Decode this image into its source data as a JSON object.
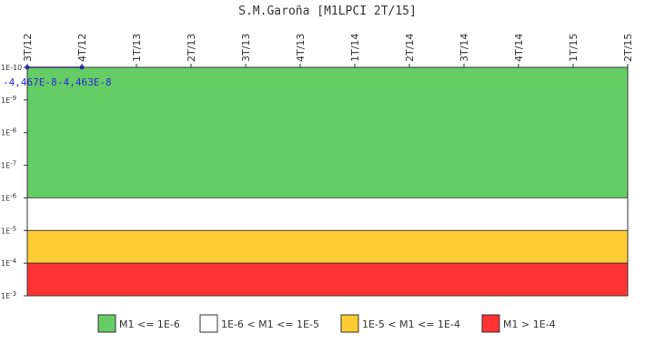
{
  "chart_data": {
    "type": "line",
    "title": "S.M.Garoña [M1LPCI 2T/15]",
    "x_categories": [
      "3T/12",
      "4T/12",
      "1T/13",
      "2T/13",
      "3T/13",
      "4T/13",
      "1T/14",
      "2T/14",
      "3T/14",
      "4T/14",
      "1T/15",
      "2T/15"
    ],
    "y_scale": "log",
    "y_axis_inverted": true,
    "y_ticks": [
      {
        "label_base": "1E-10",
        "exp": -10
      },
      {
        "label_base": "1E",
        "exp": -9,
        "sup": "-9"
      },
      {
        "label_base": "1E",
        "exp": -8,
        "sup": "-8"
      },
      {
        "label_base": "1E",
        "exp": -7,
        "sup": "-7"
      },
      {
        "label_base": "1E",
        "exp": -6,
        "sup": "-6"
      },
      {
        "label_base": "1E",
        "exp": -5,
        "sup": "-5"
      },
      {
        "label_base": "1E",
        "exp": -4,
        "sup": "-4"
      },
      {
        "label_base": "1E",
        "exp": -3,
        "sup": "-3"
      }
    ],
    "ylim_exp": [
      -10,
      -3
    ],
    "bands": [
      {
        "from_exp": -10,
        "to_exp": -6,
        "color": "#66cc66",
        "legend": "M1 <= 1E-6"
      },
      {
        "from_exp": -6,
        "to_exp": -5,
        "color": "#ffffff",
        "legend": "1E-6 < M1 <= 1E-5"
      },
      {
        "from_exp": -5,
        "to_exp": -4,
        "color": "#ffcc33",
        "legend": "1E-5 < M1 <= 1E-4"
      },
      {
        "from_exp": -4,
        "to_exp": -3,
        "color": "#ff3333",
        "legend": "M1 > 1E-4"
      }
    ],
    "series": [
      {
        "color": "#2a2ad0",
        "points": [
          {
            "x": "3T/12",
            "y": -4.467e-08,
            "label": "-4,467E-8"
          },
          {
            "x": "4T/12",
            "y": -4.463e-08,
            "label": "-4,463E-8"
          }
        ]
      }
    ]
  }
}
